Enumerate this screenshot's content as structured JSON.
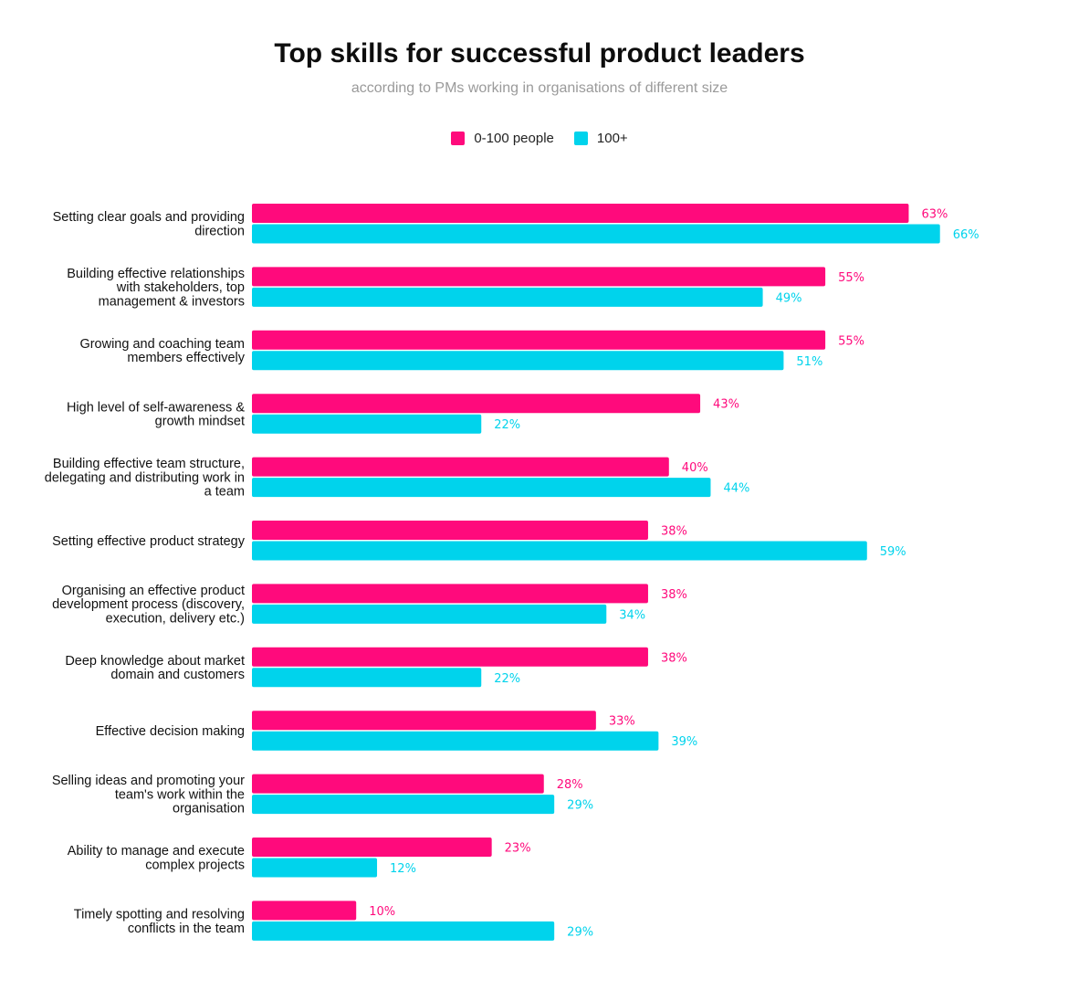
{
  "title": "Top skills for successful product leaders",
  "subtitle": "according to PMs working in organisations of different size",
  "colors": {
    "series1": "#ff0a7c",
    "series2": "#00d3ec"
  },
  "chart_data": {
    "type": "bar",
    "orientation": "horizontal",
    "title": "Top skills for successful product leaders",
    "subtitle": "according to PMs working in organisations of different size",
    "legend": "top-center",
    "grid": false,
    "xlim": [
      0,
      100
    ],
    "value_suffix": "%",
    "categories": [
      [
        "Setting clear goals and providing",
        "direction"
      ],
      [
        "Building effective relationships",
        "with stakeholders, top",
        "management & investors"
      ],
      [
        "Growing and coaching team",
        "members effectively"
      ],
      [
        "High level of self-awareness &",
        "growth mindset"
      ],
      [
        "Building effective team structure,",
        "delegating and distributing work in",
        "a team"
      ],
      [
        "Setting effective product strategy"
      ],
      [
        "Organising an effective product",
        "development process (discovery,",
        "execution, delivery etc.)"
      ],
      [
        "Deep knowledge about market",
        "domain and customers"
      ],
      [
        "Effective decision making"
      ],
      [
        "Selling ideas and promoting your",
        "team's work within the",
        "organisation"
      ],
      [
        "Ability to manage and execute",
        "complex projects"
      ],
      [
        "Timely spotting and resolving",
        "conflicts in the team"
      ]
    ],
    "series": [
      {
        "name": "0-100 people",
        "color": "#ff0a7c",
        "values": [
          63,
          55,
          55,
          43,
          40,
          38,
          38,
          38,
          33,
          28,
          23,
          10
        ]
      },
      {
        "name": "100+",
        "color": "#00d3ec",
        "values": [
          66,
          49,
          51,
          22,
          44,
          59,
          34,
          22,
          39,
          29,
          12,
          29
        ]
      }
    ]
  }
}
